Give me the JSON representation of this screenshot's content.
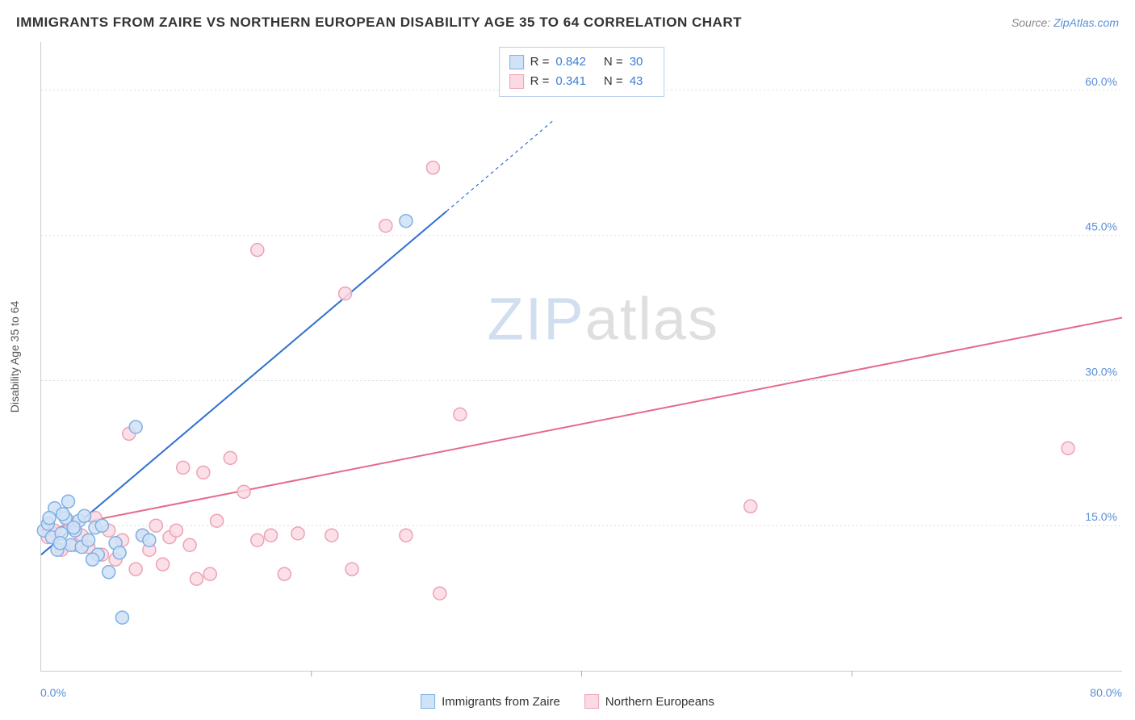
{
  "header": {
    "title": "IMMIGRANTS FROM ZAIRE VS NORTHERN EUROPEAN DISABILITY AGE 35 TO 64 CORRELATION CHART",
    "source_prefix": "Source: ",
    "source_link": "ZipAtlas.com"
  },
  "watermark": {
    "part1": "ZIP",
    "part2": "atlas"
  },
  "chart": {
    "type": "scatter",
    "y_axis_label": "Disability Age 35 to 64",
    "xlim": [
      0,
      80
    ],
    "ylim": [
      0,
      65
    ],
    "x_ticks": [
      0,
      20,
      40,
      60,
      80
    ],
    "y_grid": [
      15,
      30,
      45,
      60
    ],
    "x_min_label": "0.0%",
    "x_max_label": "80.0%",
    "y_tick_labels": [
      "15.0%",
      "30.0%",
      "45.0%",
      "60.0%"
    ],
    "background_color": "#ffffff",
    "grid_color": "#dddddd",
    "axis_color": "#cccccc",
    "tick_label_color": "#5a8fd6",
    "marker_radius": 8,
    "marker_stroke_width": 1.5,
    "line_width": 2,
    "series": [
      {
        "name": "Immigrants from Zaire",
        "fill_color": "#cfe2f6",
        "stroke_color": "#7fb0e5",
        "line_color": "#2f6fd1",
        "R": "0.842",
        "N": "30",
        "trend": {
          "x1": 0,
          "y1": 12,
          "x2": 30,
          "y2": 47.5,
          "dashed_from_x": 30,
          "dashed_to_x": 38,
          "dashed_to_y": 57
        },
        "points": [
          [
            0.2,
            14.5
          ],
          [
            0.5,
            15.2
          ],
          [
            0.8,
            13.8
          ],
          [
            1.0,
            16.8
          ],
          [
            1.2,
            12.5
          ],
          [
            1.5,
            14.2
          ],
          [
            1.8,
            15.8
          ],
          [
            2.0,
            17.5
          ],
          [
            2.2,
            13.0
          ],
          [
            2.5,
            14.5
          ],
          [
            2.8,
            15.5
          ],
          [
            3.0,
            12.8
          ],
          [
            3.2,
            16.0
          ],
          [
            3.5,
            13.5
          ],
          [
            4.0,
            14.8
          ],
          [
            4.2,
            12.0
          ],
          [
            4.5,
            15.0
          ],
          [
            5.0,
            10.2
          ],
          [
            5.5,
            13.2
          ],
          [
            6.0,
            5.5
          ],
          [
            7.0,
            25.2
          ],
          [
            7.5,
            14.0
          ],
          [
            8.0,
            13.5
          ],
          [
            5.8,
            12.2
          ],
          [
            27.0,
            46.5
          ],
          [
            3.8,
            11.5
          ],
          [
            1.6,
            16.2
          ],
          [
            2.4,
            14.8
          ],
          [
            0.6,
            15.8
          ],
          [
            1.4,
            13.2
          ]
        ]
      },
      {
        "name": "Northern Europeans",
        "fill_color": "#fadbe3",
        "stroke_color": "#eda2b5",
        "line_color": "#e56a8a",
        "R": "0.341",
        "N": "43",
        "trend": {
          "x1": 0,
          "y1": 14.5,
          "x2": 80,
          "y2": 36.5
        },
        "points": [
          [
            0.5,
            13.8
          ],
          [
            1.0,
            14.5
          ],
          [
            1.5,
            12.5
          ],
          [
            2.0,
            15.5
          ],
          [
            2.5,
            13.0
          ],
          [
            3.0,
            14.0
          ],
          [
            3.5,
            12.8
          ],
          [
            4.0,
            15.8
          ],
          [
            4.5,
            12.0
          ],
          [
            5.0,
            14.5
          ],
          [
            5.5,
            11.5
          ],
          [
            6.0,
            13.5
          ],
          [
            6.5,
            24.5
          ],
          [
            7.0,
            10.5
          ],
          [
            7.5,
            14.0
          ],
          [
            8.0,
            12.5
          ],
          [
            8.5,
            15.0
          ],
          [
            9.0,
            11.0
          ],
          [
            9.5,
            13.8
          ],
          [
            10.0,
            14.5
          ],
          [
            10.5,
            21.0
          ],
          [
            11.0,
            13.0
          ],
          [
            11.5,
            9.5
          ],
          [
            12.0,
            20.5
          ],
          [
            12.5,
            10.0
          ],
          [
            13.0,
            15.5
          ],
          [
            14.0,
            22.0
          ],
          [
            15.0,
            18.5
          ],
          [
            16.0,
            13.5
          ],
          [
            17.0,
            14.0
          ],
          [
            18.0,
            10.0
          ],
          [
            19.0,
            14.2
          ],
          [
            16.0,
            43.5
          ],
          [
            21.5,
            14.0
          ],
          [
            22.5,
            39.0
          ],
          [
            23.0,
            10.5
          ],
          [
            25.5,
            46.0
          ],
          [
            27.0,
            14.0
          ],
          [
            29.0,
            52.0
          ],
          [
            29.5,
            8.0
          ],
          [
            31.0,
            26.5
          ],
          [
            52.5,
            17.0
          ],
          [
            76.0,
            23.0
          ]
        ]
      }
    ]
  },
  "stats_box_labels": {
    "R": "R =",
    "N": "N ="
  },
  "legend": {
    "items": [
      "Immigrants from Zaire",
      "Northern Europeans"
    ]
  }
}
